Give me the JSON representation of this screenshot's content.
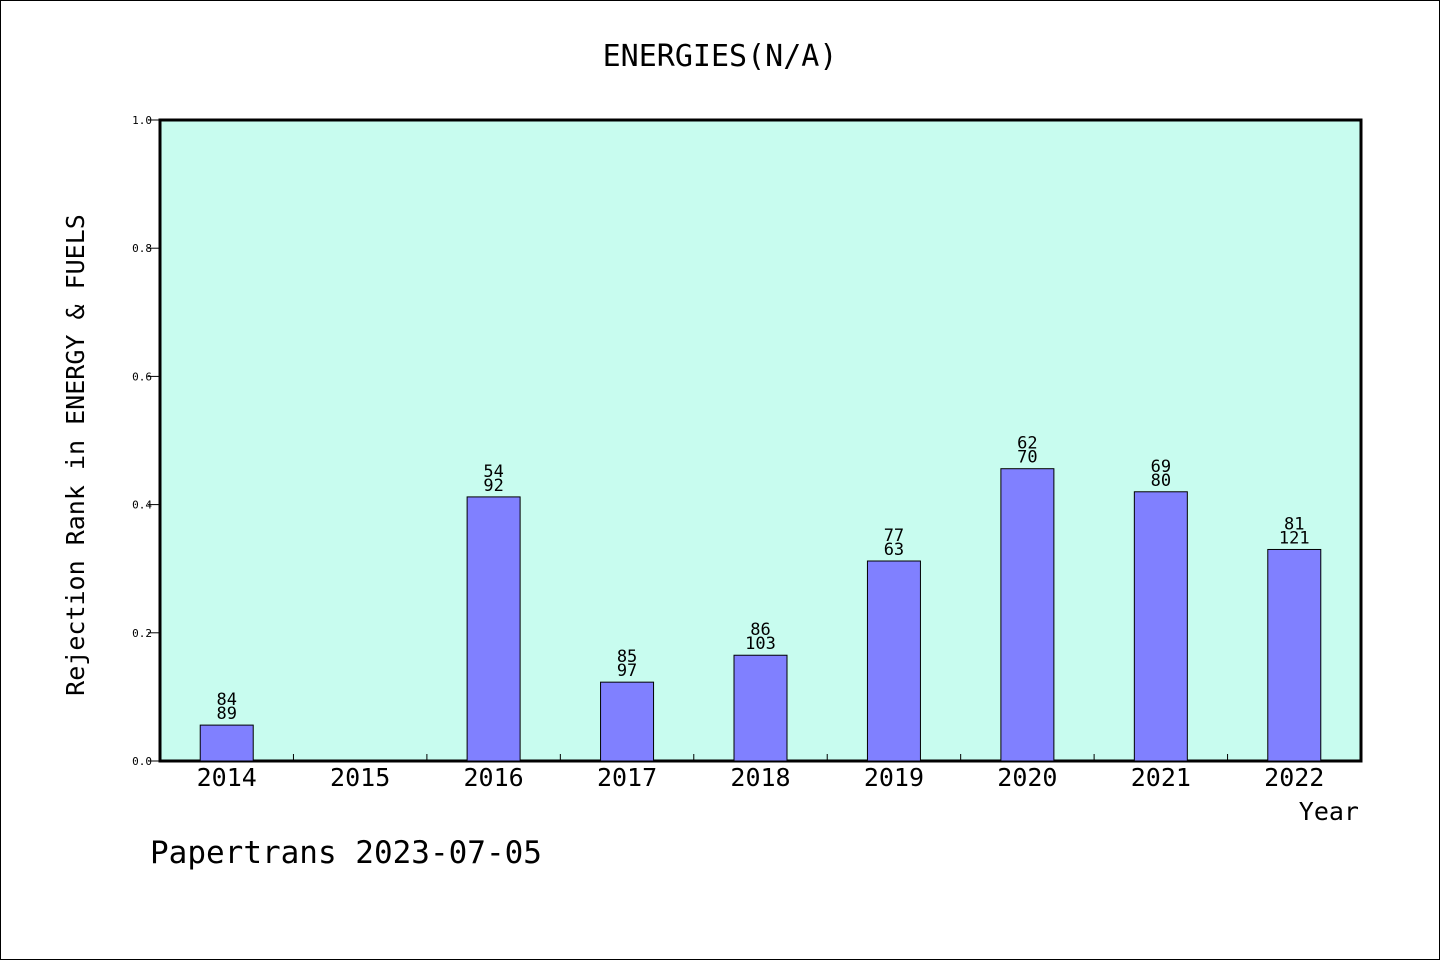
{
  "chart_data": {
    "type": "bar",
    "title": "ENERGIES(N/A)",
    "xlabel": "Year",
    "ylabel": "Rejection Rank in ENERGY & FUELS",
    "ylim": [
      0,
      1.0
    ],
    "yticks": [
      "0.0",
      "0.2",
      "0.4",
      "0.6",
      "0.8",
      "1.0"
    ],
    "categories": [
      "2014",
      "2015",
      "2016",
      "2017",
      "2018",
      "2019",
      "2020",
      "2021",
      "2022"
    ],
    "values": [
      0.056,
      null,
      0.412,
      0.123,
      0.165,
      0.312,
      0.456,
      0.42,
      0.33
    ],
    "label_top": [
      "84",
      "",
      "54",
      "85",
      "86",
      "77",
      "62",
      "69",
      "81"
    ],
    "label_bottom": [
      "89",
      "",
      "92",
      "97",
      "103",
      "63",
      "70",
      "80",
      "121"
    ],
    "grid": false,
    "colors": {
      "plot_bg": "#c8fcef",
      "bar": "#8080ff",
      "axis": "#000000"
    }
  },
  "footer": "Papertrans 2023-07-05"
}
